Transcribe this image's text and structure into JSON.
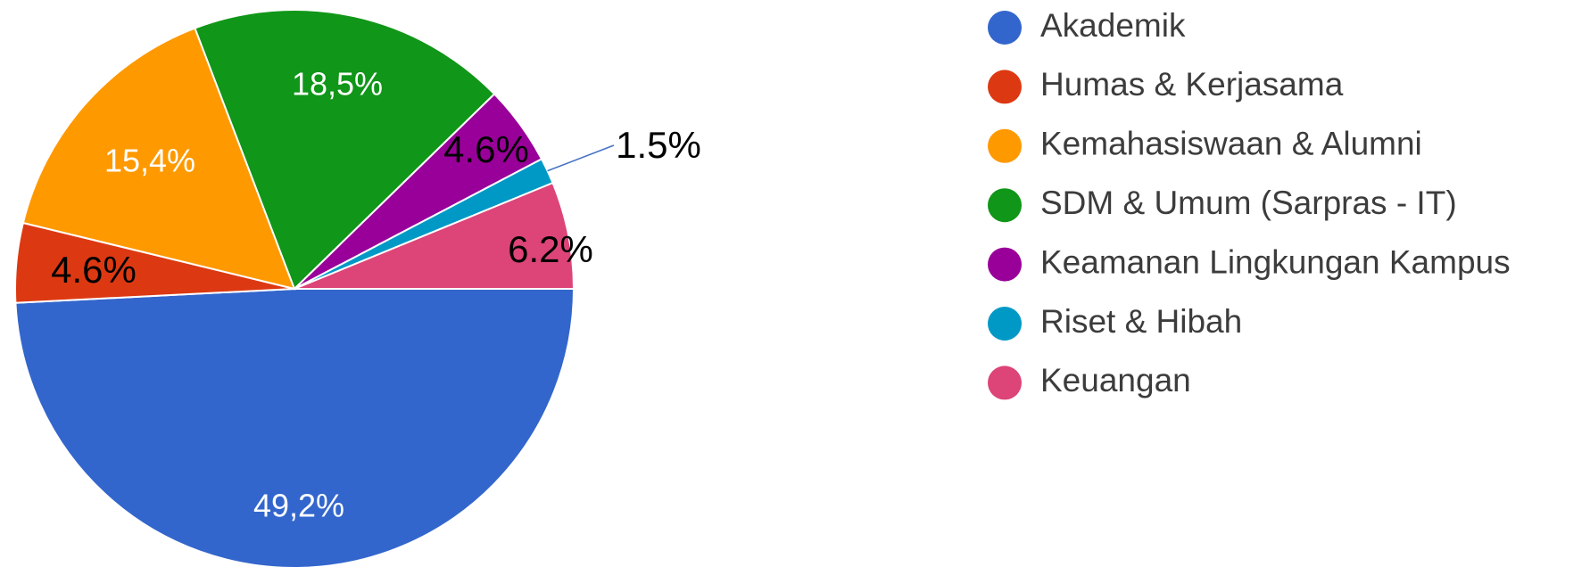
{
  "chart_data": {
    "type": "pie",
    "categories": [
      "Akademik",
      "Humas & Kerjasama",
      "Kemahasiswaan & Alumni",
      "SDM & Umum (Sarpras - IT)",
      "Keamanan Lingkungan Kampus",
      "Riset & Hibah",
      "Keuangan"
    ],
    "values": [
      49.2,
      4.6,
      15.4,
      18.5,
      4.6,
      1.5,
      6.2
    ],
    "value_labels": [
      "49,2%",
      "4.6%",
      "15,4%",
      "18,5%",
      "4.6%",
      "1.5%",
      "6.2%"
    ],
    "colors": [
      "#3366cc",
      "#dc3912",
      "#ff9900",
      "#109618",
      "#990099",
      "#0099c6",
      "#dd4477"
    ],
    "legend": "right"
  }
}
